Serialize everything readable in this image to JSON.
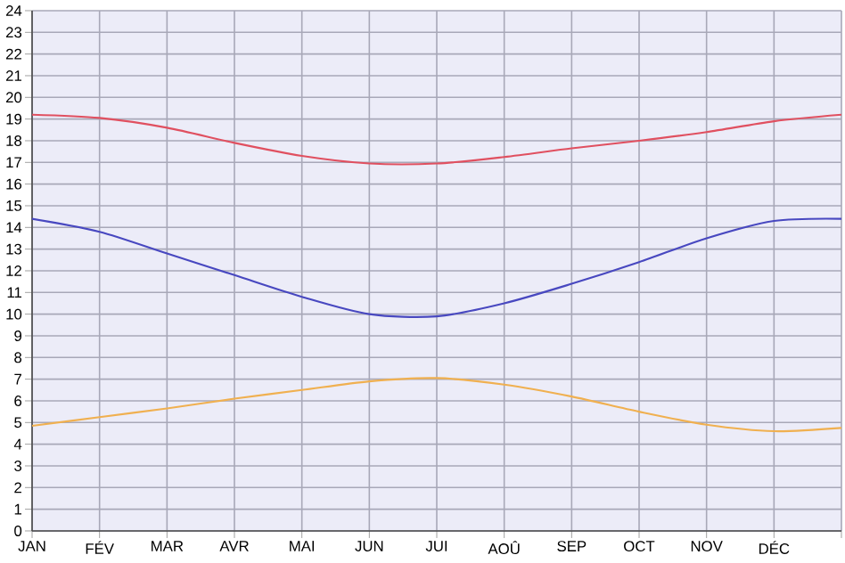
{
  "chart_data": {
    "type": "line",
    "categories": [
      "JAN",
      "FÉV",
      "MAR",
      "AVR",
      "MAI",
      "JUN",
      "JUI",
      "AOÛ",
      "SEP",
      "OCT",
      "NOV",
      "DÉC",
      null
    ],
    "series": [
      {
        "color": "#e05060",
        "values": [
          19.2,
          19.05,
          18.6,
          17.9,
          17.3,
          16.95,
          16.95,
          17.25,
          17.65,
          18.0,
          18.4,
          18.9,
          19.2
        ]
      },
      {
        "color": "#4848c0",
        "values": [
          14.4,
          13.8,
          12.8,
          11.8,
          10.8,
          10.0,
          9.9,
          10.5,
          11.4,
          12.4,
          13.5,
          14.3,
          14.4
        ]
      },
      {
        "color": "#f0b050",
        "values": [
          4.85,
          5.25,
          5.65,
          6.1,
          6.5,
          6.9,
          7.05,
          6.75,
          6.2,
          5.5,
          4.9,
          4.6,
          4.75
        ]
      }
    ],
    "ylim": [
      0,
      24
    ],
    "yticks": [
      0,
      1,
      2,
      3,
      4,
      5,
      6,
      7,
      8,
      9,
      10,
      11,
      12,
      13,
      14,
      15,
      16,
      17,
      18,
      19,
      20,
      21,
      22,
      23,
      24
    ],
    "grid": true
  }
}
